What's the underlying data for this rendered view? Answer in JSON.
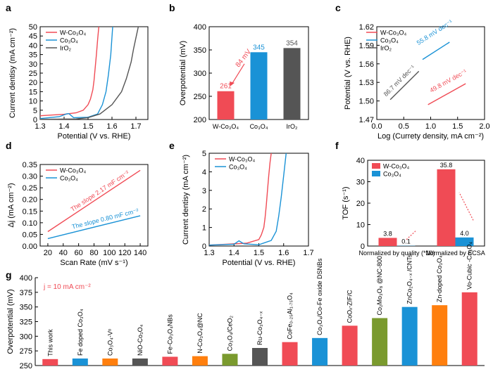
{
  "colors": {
    "red": "#f04b55",
    "blue": "#1a92d6",
    "gray": "#555555",
    "orange": "#ff7f0e",
    "green": "#7a9a2e",
    "purple": "#8c3c8c"
  },
  "chart_data": [
    {
      "panel": "a",
      "type": "line",
      "xlabel": "Potential (V vs. RHE)",
      "ylabel": "Current dentisy (mA cm⁻²)",
      "xlim": [
        1.3,
        1.75
      ],
      "ylim": [
        0,
        50
      ],
      "xticks": [
        "1.3",
        "1.4",
        "1.5",
        "1.6",
        "1.7"
      ],
      "yticks": [
        "0",
        "5",
        "10",
        "15",
        "20",
        "25",
        "30",
        "35",
        "40",
        "45",
        "50"
      ],
      "series": [
        {
          "name": "W-Co₃O₄",
          "color": "red",
          "x": [
            1.3,
            1.4,
            1.45,
            1.48,
            1.5,
            1.51,
            1.52,
            1.525,
            1.53,
            1.535,
            1.54,
            1.545
          ],
          "y": [
            2,
            2.8,
            3.6,
            5,
            8,
            11,
            16,
            21,
            28,
            35,
            43,
            50
          ]
        },
        {
          "name": "Co₃O₄",
          "color": "blue",
          "x": [
            1.3,
            1.38,
            1.41,
            1.42,
            1.44,
            1.5,
            1.54,
            1.56,
            1.575,
            1.585,
            1.595,
            1.603
          ],
          "y": [
            0.5,
            1.5,
            3,
            3.2,
            1,
            1.2,
            3,
            8,
            15,
            24,
            35,
            50
          ]
        },
        {
          "name": "IrO₂",
          "color": "gray",
          "x": [
            1.3,
            1.45,
            1.5,
            1.55,
            1.6,
            1.64,
            1.66,
            1.68,
            1.69,
            1.7,
            1.71
          ],
          "y": [
            0.1,
            0.3,
            1,
            3,
            8,
            15,
            22,
            31,
            38,
            44,
            50
          ]
        }
      ]
    },
    {
      "panel": "b",
      "type": "bar",
      "ylabel": "Overpotential (mV)",
      "ylim": [
        200,
        400
      ],
      "yticks": [
        "200",
        "250",
        "300",
        "350",
        "400"
      ],
      "categories": [
        "W-Co₃O₄",
        "Co₃O₄",
        "IrO₂"
      ],
      "values": [
        261,
        345,
        354
      ],
      "labels": [
        "261",
        "345",
        "354"
      ],
      "bar_colors": [
        "red",
        "blue",
        "gray"
      ],
      "annotation": "84 mV"
    },
    {
      "panel": "c",
      "type": "line",
      "xlabel": "Log (Currety density, mA cm⁻²)",
      "ylabel": "Potential (V vs. RHE)",
      "xlim": [
        0.0,
        2.0
      ],
      "ylim": [
        1.47,
        1.62
      ],
      "xticks": [
        "0.0",
        "0.5",
        "1.0",
        "1.5",
        "2.0"
      ],
      "yticks": [
        "1.47",
        "1.50",
        "1.53",
        "1.56",
        "1.59",
        "1.62"
      ],
      "series": [
        {
          "name": "W-Co₃O₄",
          "color": "red",
          "x": [
            0.95,
            1.65
          ],
          "y": [
            1.494,
            1.528
          ],
          "slope_label": "49.8 mV dec⁻¹"
        },
        {
          "name": "Co₃O₄",
          "color": "blue",
          "x": [
            0.85,
            1.35
          ],
          "y": [
            1.567,
            1.595
          ],
          "slope_label": "55.8 mV dec⁻¹"
        },
        {
          "name": "IrO₂",
          "color": "gray",
          "x": [
            0.25,
            0.78
          ],
          "y": [
            1.502,
            1.548
          ],
          "slope_label": "86.7 mV dec⁻¹"
        }
      ]
    },
    {
      "panel": "d",
      "type": "line",
      "xlabel": "Scan Rate (mV s⁻¹)",
      "ylabel": "Δj (mA cm⁻²)",
      "xlim": [
        10,
        150
      ],
      "ylim": [
        0.0,
        0.35
      ],
      "xticks": [
        "20",
        "40",
        "60",
        "80",
        "100",
        "120",
        "140"
      ],
      "yticks": [
        "0.00",
        "0.05",
        "0.10",
        "0.15",
        "0.20",
        "0.25",
        "0.30",
        "0.35"
      ],
      "series": [
        {
          "name": "W-Co₃O₄",
          "color": "red",
          "x": [
            20,
            140
          ],
          "y": [
            0.062,
            0.325
          ],
          "slope_label": "The slope 2.17 mF cm⁻²"
        },
        {
          "name": "Co₃O₄",
          "color": "blue",
          "x": [
            20,
            140
          ],
          "y": [
            0.032,
            0.13
          ],
          "slope_label": "The slope 0.80 mF cm⁻²"
        }
      ]
    },
    {
      "panel": "e",
      "type": "line",
      "xlabel": "Potential (V vs. RHE)",
      "ylabel": "Current dentisy (mA cm⁻²)",
      "xlim": [
        1.3,
        1.7
      ],
      "ylim": [
        0,
        5
      ],
      "xticks": [
        "1.3",
        "1.4",
        "1.5",
        "1.6",
        "1.7"
      ],
      "yticks": [
        "0",
        "1",
        "2",
        "3",
        "4",
        "5"
      ],
      "series": [
        {
          "name": "W-Co₃O₄",
          "color": "red",
          "x": [
            1.3,
            1.45,
            1.5,
            1.51,
            1.52,
            1.525,
            1.53,
            1.535,
            1.54,
            1.545,
            1.55
          ],
          "y": [
            0.05,
            0.15,
            0.35,
            0.6,
            1.0,
            1.5,
            2.2,
            3.0,
            3.8,
            4.5,
            5.0
          ]
        },
        {
          "name": "Co₃O₄",
          "color": "blue",
          "x": [
            1.3,
            1.4,
            1.42,
            1.44,
            1.5,
            1.55,
            1.57,
            1.58,
            1.59,
            1.6,
            1.61
          ],
          "y": [
            0.05,
            0.1,
            0.28,
            0.12,
            0.07,
            0.3,
            0.8,
            1.6,
            2.6,
            3.8,
            5.0
          ]
        }
      ]
    },
    {
      "panel": "f",
      "type": "bar",
      "ylabel": "TOF (s⁻¹)",
      "ylim": [
        0,
        40
      ],
      "yticks": [
        "0",
        "10",
        "20",
        "30",
        "40"
      ],
      "categories": [
        "Normalized by quality (*10)",
        "Normalized by ECSA"
      ],
      "series": [
        {
          "name": "W-Co₃O₄",
          "color": "red",
          "values": [
            3.8,
            35.8
          ],
          "labels": [
            "3.8",
            "35.8"
          ]
        },
        {
          "name": "Co₃O₄",
          "color": "blue",
          "values": [
            0.1,
            4.0
          ],
          "labels": [
            "0.1",
            "4.0"
          ]
        }
      ]
    },
    {
      "panel": "g",
      "type": "bar",
      "ylabel": "Overpotential (mV)",
      "ylim": [
        250,
        400
      ],
      "yticks": [
        "250",
        "275",
        "300",
        "325",
        "350",
        "375",
        "400"
      ],
      "annotation": "j = 10 mA cm⁻²",
      "categories": [
        "This work",
        "Fe doped Co₃O₄",
        "Co₃O₄-Vᵒ",
        "NiO-Co₃O₄",
        "Fe-Co₃O₄NBs",
        "N-Co₃O₄@NC",
        "Co₃O₄/CeO₂",
        "Ru-Co₃O₄₋ₓ",
        "CoFe₀.₂₅Al₁.₇₅O₄",
        "Co₃O₄/Co-Fe oxide DSNBs",
        "CoOₓ-ZIF/C",
        "Co₂Mo₃O₈ @NC-800",
        "ZnCo₂O₄₋ₓ /CNTs",
        "Zn-doped Co₃O₄",
        "Vo-Cubic -Co₃O₄"
      ],
      "values": [
        261,
        262,
        262,
        262,
        265,
        266,
        270,
        280,
        290,
        297,
        318,
        331,
        350,
        353,
        375
      ],
      "bar_colors": [
        "red",
        "blue",
        "orange",
        "gray",
        "red",
        "orange",
        "green",
        "gray",
        "red",
        "blue",
        "red",
        "green",
        "blue",
        "orange",
        "red"
      ]
    }
  ]
}
